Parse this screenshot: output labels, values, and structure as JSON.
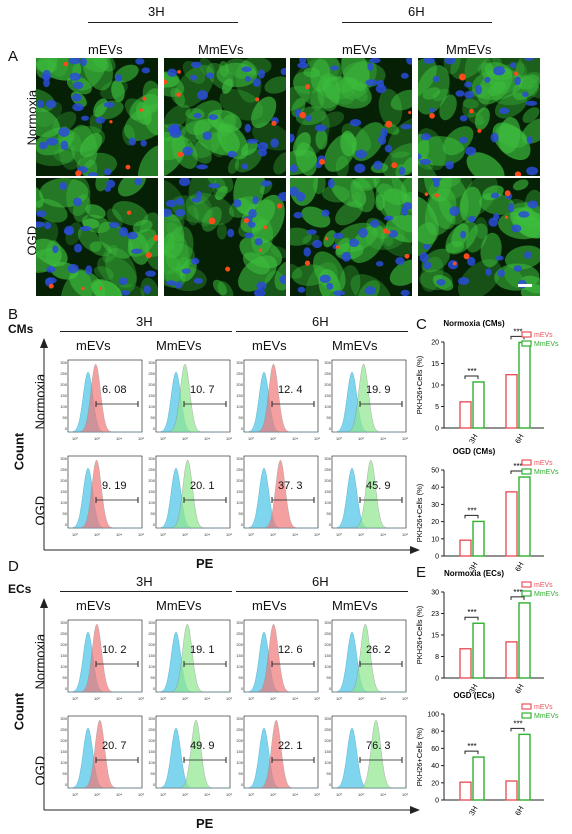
{
  "panelA": {
    "letter": "A",
    "time_groups": [
      "3H",
      "6H"
    ],
    "columns": [
      "mEVs",
      "MmEVs",
      "mEVs",
      "MmEVs"
    ],
    "rows": [
      "Normoxia",
      "OGD"
    ]
  },
  "panelB": {
    "letter": "B",
    "cell_label": "CMs",
    "time_groups": [
      "3H",
      "6H"
    ],
    "columns": [
      "mEVs",
      "MmEVs",
      "mEVs",
      "MmEVs"
    ],
    "rows": [
      "Normoxia",
      "OGD"
    ],
    "y_axis_label": "Count",
    "x_axis_label": "PE",
    "values": [
      [
        "6. 08",
        "10. 7",
        "12. 4",
        "19. 9"
      ],
      [
        "9. 19",
        "20. 1",
        "37. 3",
        "45. 9"
      ]
    ],
    "yticks": [
      "300",
      "250",
      "200",
      "150",
      "100",
      "50",
      "0"
    ],
    "xticks": [
      "10⁰",
      "10²",
      "10⁴",
      "10⁶"
    ]
  },
  "panelD": {
    "letter": "D",
    "cell_label": "ECs",
    "time_groups": [
      "3H",
      "6H"
    ],
    "columns": [
      "mEVs",
      "MmEVs",
      "mEVs",
      "MmEVs"
    ],
    "rows": [
      "Normoxia",
      "OGD"
    ],
    "y_axis_label": "Count",
    "x_axis_label": "PE",
    "values": [
      [
        "10. 2",
        "19. 1",
        "12. 6",
        "26. 2"
      ],
      [
        "20. 7",
        "49. 9",
        "22. 1",
        "76. 3"
      ]
    ],
    "yticks": [
      "300",
      "250",
      "200",
      "150",
      "100",
      "50",
      "0"
    ],
    "xticks": [
      "10⁰",
      "10²",
      "10⁴",
      "10⁶"
    ]
  },
  "panelC": {
    "letter": "C"
  },
  "panelE": {
    "letter": "E"
  },
  "chart_data": [
    {
      "type": "bar",
      "title": "Normoxia (CMs)",
      "ylabel": "PKH26+Cells (%)",
      "categories": [
        "3H",
        "6H"
      ],
      "series": [
        {
          "name": "mEVs",
          "values": [
            6.08,
            12.4
          ]
        },
        {
          "name": "MmEVs",
          "values": [
            10.7,
            19.9
          ]
        }
      ],
      "ylim": [
        0,
        20
      ],
      "significance": [
        "***",
        "***"
      ]
    },
    {
      "type": "bar",
      "title": "OGD (CMs)",
      "ylabel": "PKH26+Cells (%)",
      "categories": [
        "3H",
        "6H"
      ],
      "series": [
        {
          "name": "mEVs",
          "values": [
            9.19,
            37.3
          ]
        },
        {
          "name": "MmEVs",
          "values": [
            20.1,
            45.9
          ]
        }
      ],
      "ylim": [
        0,
        50
      ],
      "significance": [
        "***",
        "***"
      ]
    },
    {
      "type": "bar",
      "title": "Normoxia (ECs)",
      "ylabel": "PKH26+Cells (%)",
      "categories": [
        "3H",
        "6H"
      ],
      "series": [
        {
          "name": "mEVs",
          "values": [
            10.2,
            12.6
          ]
        },
        {
          "name": "MmEVs",
          "values": [
            19.1,
            26.2
          ]
        }
      ],
      "ylim": [
        0,
        30
      ],
      "significance": [
        "***",
        "***"
      ]
    },
    {
      "type": "bar",
      "title": "OGD (ECs)",
      "ylabel": "PKH26+Cells (%)",
      "categories": [
        "3H",
        "6H"
      ],
      "series": [
        {
          "name": "mEVs",
          "values": [
            20.7,
            22.1
          ]
        },
        {
          "name": "MmEVs",
          "values": [
            49.9,
            76.3
          ]
        }
      ],
      "ylim": [
        0,
        100
      ],
      "significance": [
        "***",
        "***"
      ]
    }
  ],
  "colors": {
    "mEVs": "#e8545c",
    "MmEVs": "#2fb02f",
    "hist_control": "#55c8e8",
    "hist_red": "#f07878",
    "hist_green": "#8fe88f"
  }
}
